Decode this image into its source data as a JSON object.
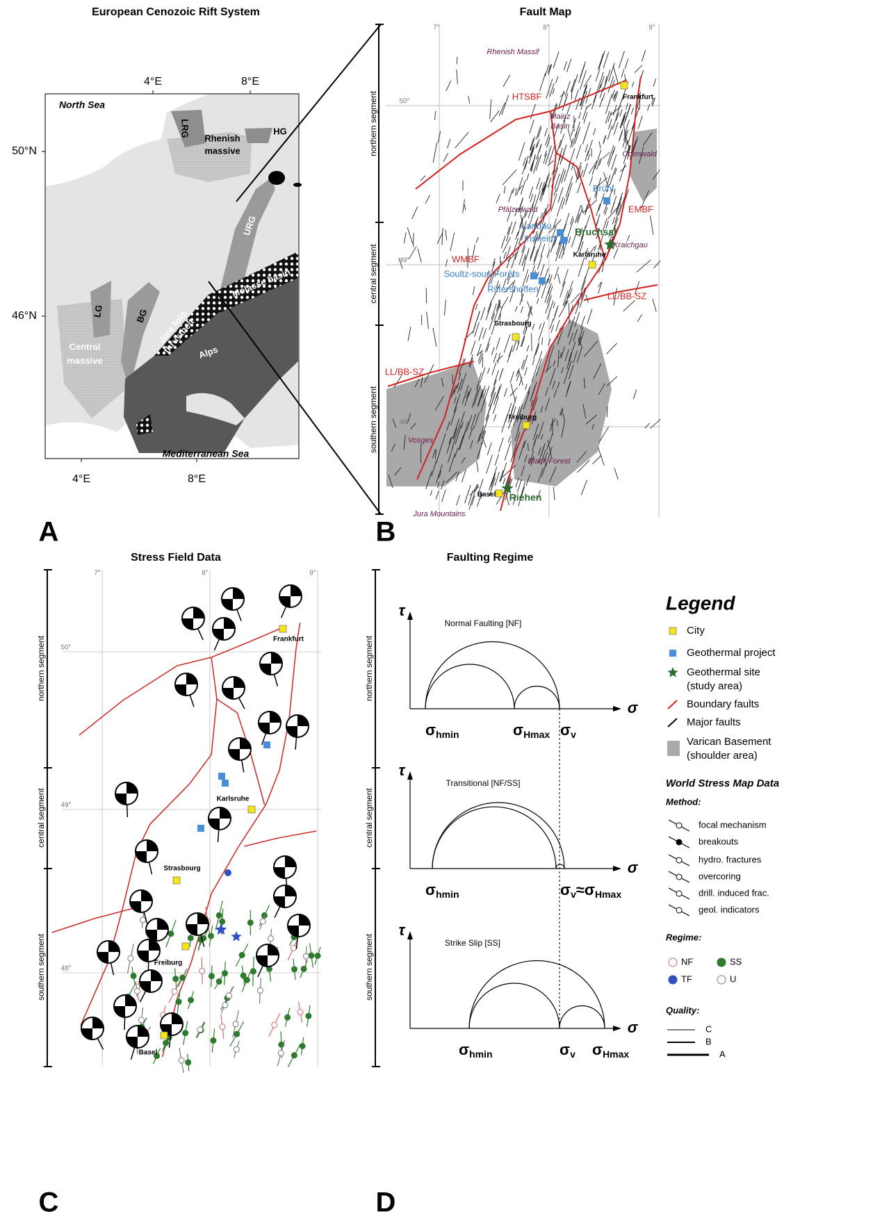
{
  "figure": {
    "panel_a": {
      "title": "European Cenozoic Rift System",
      "letter": "A",
      "lon_top": [
        "4°E",
        "8°E"
      ],
      "lon_bottom": [
        "4°E",
        "8°E"
      ],
      "lat": [
        "50°N",
        "46°N"
      ],
      "labels": [
        "North Sea",
        "Mediterranean Sea",
        "LRG",
        "HG",
        "Rhenish",
        "massive",
        "URG",
        "LG",
        "BG",
        "Jura fold-",
        "thrustbelt",
        "Molasse basin",
        "Alps",
        "Central",
        "massive"
      ]
    },
    "panel_b": {
      "title": "Fault Map",
      "letter": "B",
      "lon": [
        "7°",
        "8°",
        "9°"
      ],
      "lat": [
        "50°",
        "49°",
        "48°"
      ],
      "segments": [
        "northern segment",
        "central segment",
        "southern segment"
      ],
      "labels": [
        "Rhenish Massif",
        "Frankfurt",
        "HTSBF",
        "Mainz",
        "Basin",
        "Odenwald",
        "Brühl",
        "EMBF",
        "Pfälzerwald",
        "Landau",
        "Insheim",
        "Bruchsal",
        "Kraichgau",
        "WMBF",
        "Karlsruhe",
        "Soultz-sous-Forêts",
        "Rittershoffen",
        "LL/BB-SZ",
        "Strasbourg",
        "LL/BB-SZ",
        "Freiburg",
        "Vosges",
        "Black Forest",
        "Basel",
        "Riehen",
        "Jura Mountains"
      ]
    },
    "panel_c": {
      "title": "Stress Field Data",
      "letter": "C",
      "lon": [
        "7°",
        "8°",
        "9°"
      ],
      "lat": [
        "50°",
        "49°",
        "48°"
      ],
      "segments": [
        "northern segment",
        "central segment",
        "southern segment"
      ],
      "cities": [
        "Frankfurt",
        "Karlsruhe",
        "Strasbourg",
        "Freiburg",
        "Basel"
      ]
    },
    "panel_d": {
      "title": "Faulting Regime",
      "letter": "D",
      "segments": [
        "northern segment",
        "central segment",
        "southern segment"
      ],
      "diagrams": [
        {
          "title": "Normal Faulting [NF]",
          "tau": "τ",
          "sigma": "σ",
          "labels": [
            [
              "σ",
              "hmin"
            ],
            [
              "σ",
              "Hmax"
            ],
            [
              "σ",
              "v"
            ]
          ]
        },
        {
          "title": "Transitional [NF/SS]",
          "tau": "τ",
          "sigma": "σ",
          "labels": [
            [
              "σ",
              "hmin"
            ],
            [
              "σ",
              "v",
              "≈σ",
              "Hmax"
            ]
          ]
        },
        {
          "title": "Strike Slip [SS]",
          "tau": "τ",
          "sigma": "σ",
          "labels": [
            [
              "σ",
              "hmin"
            ],
            [
              "σ",
              "v"
            ],
            [
              "σ",
              "Hmax"
            ]
          ]
        }
      ]
    },
    "legend": {
      "title": "Legend",
      "items": [
        "City",
        "Geothermal project",
        "Geothermal site",
        "(study area)",
        "Boundary faults",
        "Major faults",
        "Varican Basement",
        "(shoulder area)"
      ],
      "wsm_title": "World Stress Map Data",
      "method_title": "Method:",
      "methods": [
        "focal mechanism",
        "breakouts",
        "hydro. fractures",
        "overcoring",
        "drill. induced frac.",
        "geol. indicators"
      ],
      "regime_title": "Regime:",
      "regimes": [
        "NF",
        "SS",
        "TF",
        "U"
      ],
      "quality_title": "Quality:",
      "qualities": [
        "C",
        "B",
        "A"
      ]
    }
  }
}
